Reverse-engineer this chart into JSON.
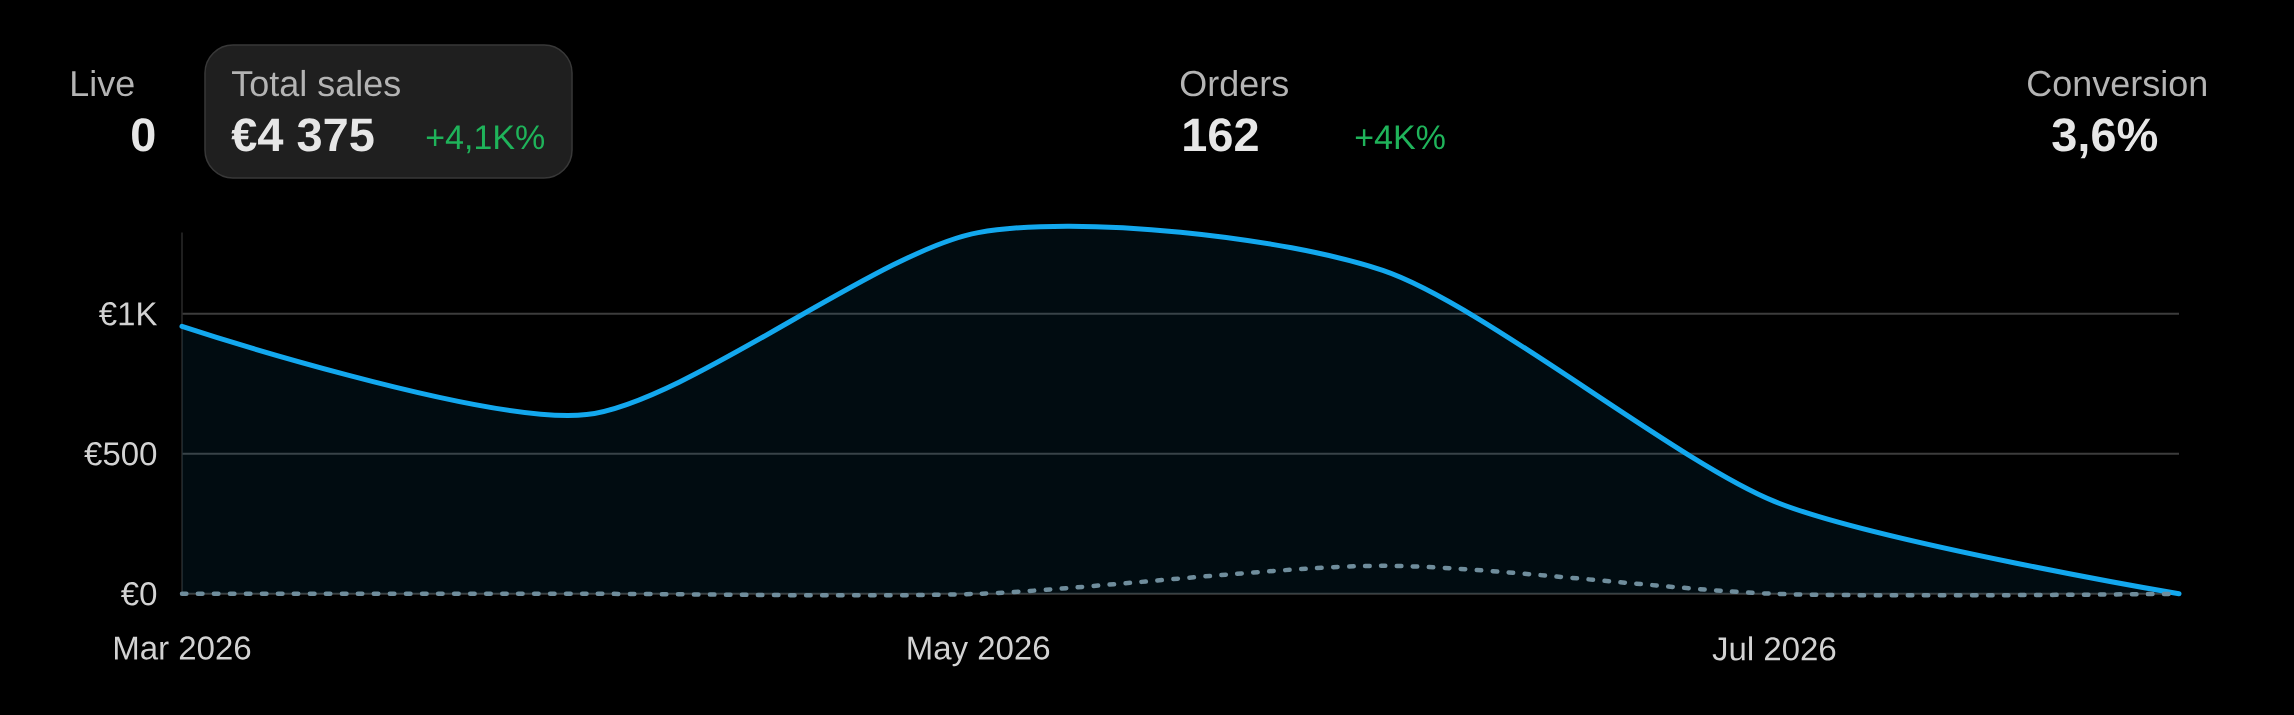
{
  "chart_data": {
    "type": "area",
    "x": [
      "2026-03",
      "2026-04",
      "2026-05",
      "2026-06",
      "2026-07",
      "2026-08"
    ],
    "series": [
      {
        "color": "#13a8ee",
        "values": [
          955,
          640,
          1290,
          1155,
          330,
          0
        ]
      },
      {
        "type": "line",
        "color": "#6f8d9c",
        "line_style": "dotted",
        "values": [
          0,
          0,
          0,
          100,
          0,
          0
        ]
      }
    ],
    "xlim": [
      "2026-03",
      "2026-08"
    ],
    "xticks": [
      {
        "value": "2026-03",
        "label": "Mar 2026"
      },
      {
        "value": "2026-05",
        "label": "May 2026"
      },
      {
        "value": "2026-07",
        "label": "Jul 2026"
      }
    ],
    "ylim": [
      0,
      1290
    ],
    "yticks": [
      {
        "value": 0,
        "label": "€0"
      },
      {
        "value": 500,
        "label": "€500"
      },
      {
        "value": 1000,
        "label": "€1K"
      }
    ],
    "grid": "y",
    "annotations": [
      "Live",
      "0",
      "Total sales",
      "€4 375",
      "+4,1K%",
      "Orders",
      "162",
      "+4K%",
      "Conversion",
      "3,6%"
    ]
  }
}
